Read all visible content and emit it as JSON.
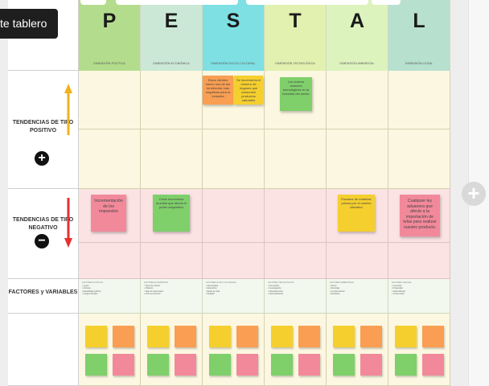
{
  "tooltip": {
    "text": "te tablero"
  },
  "board": {
    "columns": [
      {
        "letter": "P",
        "dimension": "DIMENSIÓN POLÍTICA",
        "color": "#b3dd8c"
      },
      {
        "letter": "E",
        "dimension": "DIMENSIÓN ECONÓMICA",
        "color": "#cbe8d6"
      },
      {
        "letter": "S",
        "dimension": "DIMENSIÓN SOCIO-CULTURAL",
        "color": "#7fe0e3"
      },
      {
        "letter": "T",
        "dimension": "DIMENSIÓN TECNOLÓGICA",
        "color": "#e2f0b0"
      },
      {
        "letter": "A",
        "dimension": "DIMENSIÓN AMBIENTAL",
        "color": "#ddf3be"
      },
      {
        "letter": "L",
        "dimension": "DIMENSIÓN LEGAL",
        "color": "#b7e0cf"
      }
    ],
    "rows": {
      "positive": {
        "label": "TENDENCIAS DE TIPO POSITIVO",
        "icon": "plus-circle-icon",
        "arrow_color": "#f2b01b"
      },
      "negative": {
        "label": "TENDENCIAS DE TIPO NEGATIVO",
        "icon": "minus-circle-icon",
        "arrow_color": "#e53030"
      },
      "factors": {
        "label": "FACTORES y VARIABLES"
      }
    },
    "notes": {
      "s_orange": "Estos clientes hacen una de las tendencias más negativas para la industria",
      "s_yellow": "Se incrementa el número de hogares que consumen productos naturales",
      "t_green": "Los nuevos avances tecnológicos en la industria del sector",
      "p_pink": "Incrementación de los impuestos",
      "e_green": "Crisis económica mundial que afecta el poder adquisitivo",
      "a_yellow": "Escasez de materias primas por el cambio climático",
      "l_pink": "Cualquier ley aduanera que afecte a la importación de telas para realizar nuestro producto."
    },
    "factor_lists": [
      {
        "title": "FACTORES POLÍTICOS",
        "items": [
          "Leyes",
          "Normas",
          "Estabilidad política",
          "Cargas fiscales"
        ]
      },
      {
        "title": "FACTORES ECONÓMICOS",
        "items": [
          "Tipos de interés",
          "Inflación",
          "Tasa de desempleo",
          "Ciclo económico"
        ]
      },
      {
        "title": "FACTORES SOCIO-CULTURALES",
        "items": [
          "Demografía",
          "Educación",
          "Estilo de vida",
          "Religión"
        ]
      },
      {
        "title": "FACTORES TECNOLÓGICOS",
        "items": [
          "Innovación",
          "Investigación",
          "Obsolescencia",
          "Automatización"
        ]
      },
      {
        "title": "FACTORES AMBIENTALES",
        "items": [
          "Clima",
          "Reciclaje",
          "Contaminación",
          "Residuos"
        ]
      },
      {
        "title": "FACTORES LEGALES",
        "items": [
          "Licencias",
          "Propiedad",
          "Salud laboral",
          "Consumidor"
        ]
      }
    ],
    "sticky_colors": [
      "#f5cf2e",
      "#f99e52",
      "#7fcf6b",
      "#f2899b"
    ]
  }
}
